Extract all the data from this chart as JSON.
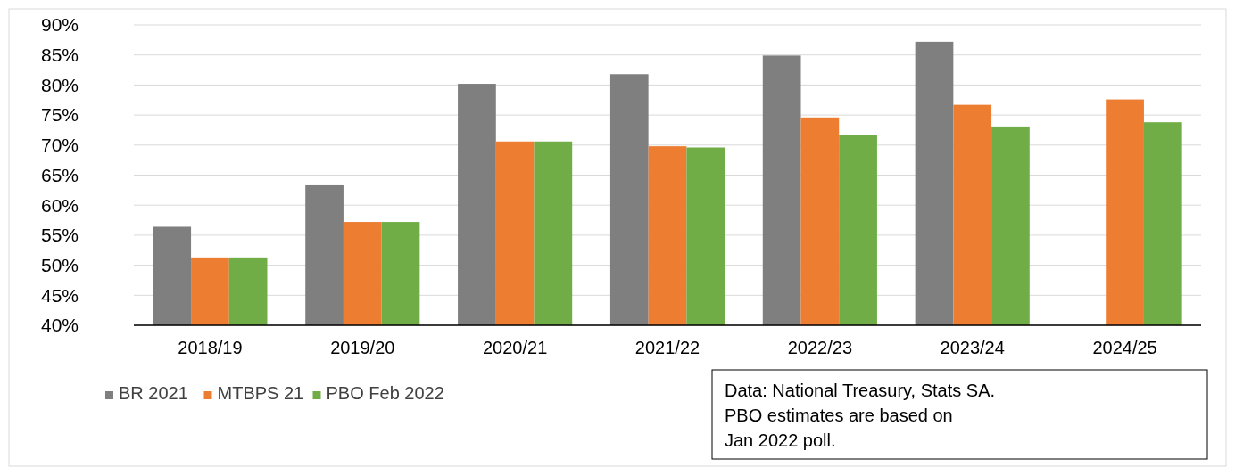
{
  "chart_data": {
    "type": "bar",
    "categories": [
      "2018/19",
      "2019/20",
      "2020/21",
      "2021/22",
      "2022/23",
      "2023/24",
      "2024/25"
    ],
    "series": [
      {
        "name": "BR 2021",
        "color": "#7f7f7f",
        "values": [
          56.4,
          63.3,
          80.2,
          81.8,
          84.9,
          87.2,
          null
        ]
      },
      {
        "name": "MTBPS 21",
        "color": "#ed7d31",
        "values": [
          51.3,
          57.2,
          70.6,
          69.8,
          74.6,
          76.7,
          77.6
        ]
      },
      {
        "name": "PBO Feb 2022",
        "color": "#70ad47",
        "values": [
          51.3,
          57.2,
          70.6,
          69.6,
          71.7,
          73.1,
          73.8
        ]
      }
    ],
    "ylim": [
      40,
      90
    ],
    "yticks": [
      {
        "value": 40,
        "label": "40%"
      },
      {
        "value": 45,
        "label": "45%"
      },
      {
        "value": 50,
        "label": "50%"
      },
      {
        "value": 55,
        "label": "55%"
      },
      {
        "value": 60,
        "label": "60%"
      },
      {
        "value": 65,
        "label": "65%"
      },
      {
        "value": 70,
        "label": "70%"
      },
      {
        "value": 75,
        "label": "75%"
      },
      {
        "value": 80,
        "label": "80%"
      },
      {
        "value": 85,
        "label": "85%"
      },
      {
        "value": 90,
        "label": "90%"
      }
    ],
    "grid": "y",
    "legend": "bottom left",
    "annotations": [
      "Data: National Treasury, Stats SA.\nPBO estimates are based on\nJan 2022 poll."
    ]
  }
}
